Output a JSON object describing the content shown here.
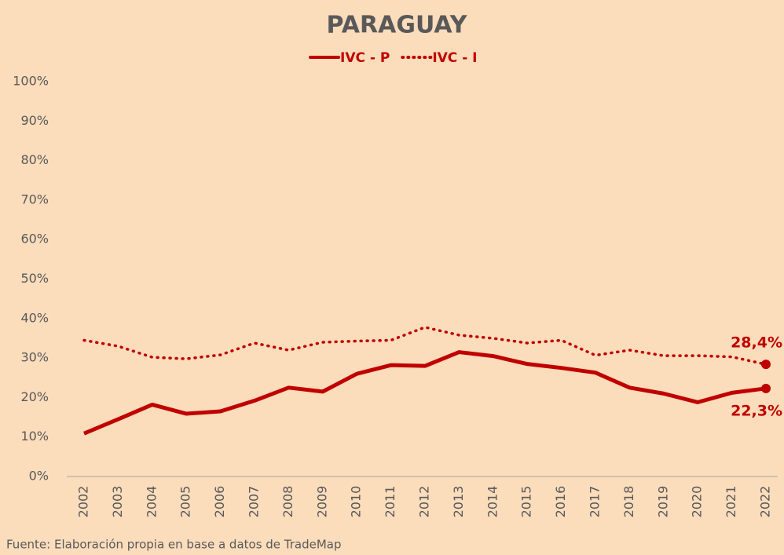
{
  "chart_data": {
    "type": "line",
    "title": "PARAGUAY",
    "categories": [
      "2002",
      "2003",
      "2004",
      "2005",
      "2006",
      "2007",
      "2008",
      "2009",
      "2010",
      "2011",
      "2012",
      "2013",
      "2014",
      "2015",
      "2016",
      "2017",
      "2018",
      "2019",
      "2020",
      "2021",
      "2022"
    ],
    "series": [
      {
        "name": "IVC - P",
        "color": "#c00000",
        "style": "solid",
        "values": [
          10.9,
          14.5,
          18.2,
          15.9,
          16.5,
          19.2,
          22.5,
          21.5,
          26,
          28.2,
          28,
          31.5,
          30.5,
          28.5,
          27.5,
          26.3,
          22.5,
          21,
          18.8,
          21.2,
          22.3
        ],
        "value_labels": [
          null,
          null,
          null,
          null,
          null,
          null,
          null,
          null,
          null,
          null,
          null,
          null,
          null,
          null,
          null,
          null,
          null,
          null,
          null,
          null,
          "22,3%"
        ]
      },
      {
        "name": "IVC - I",
        "color": "#c00000",
        "style": "dotted",
        "values": [
          34.5,
          33,
          30.2,
          29.8,
          30.8,
          33.8,
          32,
          34,
          34.3,
          34.5,
          37.8,
          35.8,
          35,
          33.8,
          34.5,
          30.7,
          32,
          30.6,
          30.6,
          30.3,
          28.4
        ],
        "value_labels": [
          null,
          null,
          null,
          null,
          null,
          null,
          null,
          null,
          null,
          null,
          null,
          null,
          null,
          null,
          null,
          null,
          null,
          null,
          null,
          null,
          "28,4%"
        ]
      }
    ],
    "ylim": [
      0,
      100
    ],
    "yticks": [
      {
        "value": 0,
        "label": "0%"
      },
      {
        "value": 10,
        "label": "10%"
      },
      {
        "value": 20,
        "label": "20%"
      },
      {
        "value": 30,
        "label": "30%"
      },
      {
        "value": 40,
        "label": "40%"
      },
      {
        "value": 50,
        "label": "50%"
      },
      {
        "value": 60,
        "label": "60%"
      },
      {
        "value": 70,
        "label": "70%"
      },
      {
        "value": 80,
        "label": "80%"
      },
      {
        "value": 90,
        "label": "90%"
      },
      {
        "value": 100,
        "label": "100%"
      }
    ],
    "grid": false,
    "legend": "top",
    "source": "Fuente: Elaboración propia en base a datos de TradeMap"
  }
}
